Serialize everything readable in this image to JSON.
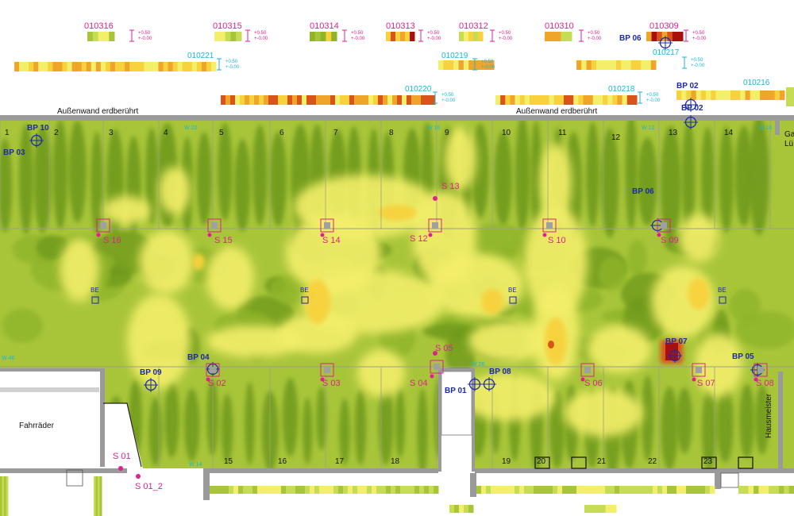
{
  "heatmap_palette": [
    "#6f9a1e",
    "#8fb42a",
    "#a8c53a",
    "#c7dc55",
    "#f4ef6a",
    "#f7d23c",
    "#efa52a",
    "#d9541a",
    "#a8100e"
  ],
  "section_codes_top": [
    {
      "id": "010316",
      "color": "magenta"
    },
    {
      "id": "010315",
      "color": "magenta"
    },
    {
      "id": "010314",
      "color": "magenta"
    },
    {
      "id": "010313",
      "color": "magenta"
    },
    {
      "id": "010312",
      "color": "magenta"
    },
    {
      "id": "010310",
      "color": "magenta"
    },
    {
      "id": "010309",
      "color": "magenta"
    },
    {
      "id": "010221",
      "color": "cyan"
    },
    {
      "id": "010219",
      "color": "cyan"
    },
    {
      "id": "010217",
      "color": "cyan"
    },
    {
      "id": "010220",
      "color": "cyan"
    },
    {
      "id": "010218",
      "color": "cyan"
    },
    {
      "id": "010216",
      "color": "cyan"
    }
  ],
  "scale_labels": {
    "top": "+0.50",
    "bottom": "+-0.00"
  },
  "wall_labels": [
    "Außenwand erdberührt",
    "Außenwand erdberührt"
  ],
  "room_numbers_top": [
    "1",
    "2",
    "3",
    "4",
    "5",
    "6",
    "7",
    "8",
    "9",
    "10",
    "11",
    "12",
    "13",
    "14"
  ],
  "room_numbers_bottom": [
    "15",
    "16",
    "17",
    "18",
    "19",
    "20",
    "21",
    "22",
    "23"
  ],
  "bp_labels": [
    "BP 10",
    "BP 03",
    "BP 06",
    "BP 02",
    "BP 02",
    "BP 06",
    "BP 09",
    "BP 04",
    "BP 01",
    "BP 08",
    "BP 07",
    "BP 05"
  ],
  "s_labels": [
    "S 16",
    "S 15",
    "S 14",
    "S 13",
    "S 12",
    "S 10",
    "S 09",
    "S 05",
    "S 04",
    "S 02",
    "S 03",
    "S 06",
    "S 07",
    "S 08",
    "S 01",
    "S 01_2"
  ],
  "be_label": "BE",
  "rooms": [
    "Fahrräder",
    "Hausmeister"
  ],
  "edge_text": [
    "Ga",
    "Lü"
  ],
  "cyan_tags": [
    "W 20",
    "W 12",
    "W 16",
    "W 46",
    "W 16",
    "W 26",
    "W 14"
  ]
}
